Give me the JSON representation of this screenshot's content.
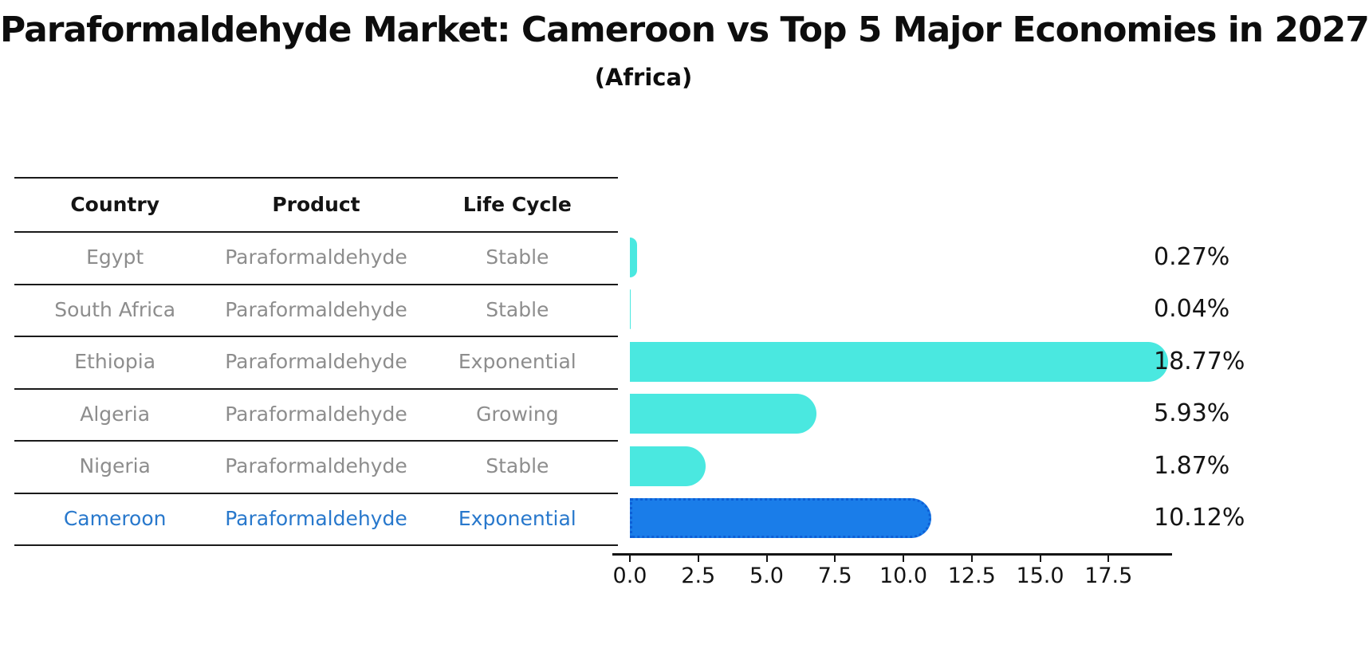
{
  "page": {
    "title": "Paraformaldehyde Market: Cameroon vs Top 5 Major Economies in 2027",
    "subtitle": "(Africa)"
  },
  "table": {
    "headers": [
      "Country",
      "Product",
      "Life Cycle"
    ],
    "highlighted_country": "Cameroon"
  },
  "chart_data": {
    "type": "bar",
    "orientation": "horizontal",
    "title": "Paraformaldehyde Market: Cameroon vs Top 5 Major Economies in 2027",
    "subtitle": "(Africa)",
    "categories": [
      "Egypt",
      "South Africa",
      "Ethiopia",
      "Algeria",
      "Nigeria",
      "Cameroon"
    ],
    "values": [
      0.27,
      0.04,
      18.77,
      5.93,
      1.87,
      10.12
    ],
    "value_labels": [
      "0.27%",
      "0.04%",
      "18.77%",
      "5.93%",
      "1.87%",
      "10.12%"
    ],
    "rows": [
      {
        "country": "Egypt",
        "product": "Paraformaldehyde",
        "life_cycle": "Stable",
        "value": 0.27,
        "value_label": "0.27%",
        "highlight": false
      },
      {
        "country": "South Africa",
        "product": "Paraformaldehyde",
        "life_cycle": "Stable",
        "value": 0.04,
        "value_label": "0.04%",
        "highlight": false
      },
      {
        "country": "Ethiopia",
        "product": "Paraformaldehyde",
        "life_cycle": "Exponential",
        "value": 18.77,
        "value_label": "18.77%",
        "highlight": false
      },
      {
        "country": "Algeria",
        "product": "Paraformaldehyde",
        "life_cycle": "Growing",
        "value": 5.93,
        "value_label": "5.93%",
        "highlight": false
      },
      {
        "country": "Nigeria",
        "product": "Paraformaldehyde",
        "life_cycle": "Stable",
        "value": 1.87,
        "value_label": "1.87%",
        "highlight": false
      },
      {
        "country": "Cameroon",
        "product": "Paraformaldehyde",
        "life_cycle": "Exponential",
        "value": 10.12,
        "value_label": "10.12%",
        "highlight": true
      }
    ],
    "x_ticks": [
      0.0,
      2.5,
      5.0,
      7.5,
      10.0,
      12.5,
      15.0,
      17.5
    ],
    "x_tick_labels": [
      "0.0",
      "2.5",
      "5.0",
      "7.5",
      "10.0",
      "12.5",
      "15.0",
      "17.5"
    ],
    "xlim": [
      0,
      19.3
    ],
    "grid": false,
    "legend": false,
    "colors": {
      "bar_default": "#4ae8e0",
      "bar_highlight": "#1a7de9",
      "bar_highlight_border": "#0d5fd6",
      "highlight_text": "#2878cc",
      "muted_text": "#8d8d8d",
      "heading_text": "#141414"
    }
  }
}
